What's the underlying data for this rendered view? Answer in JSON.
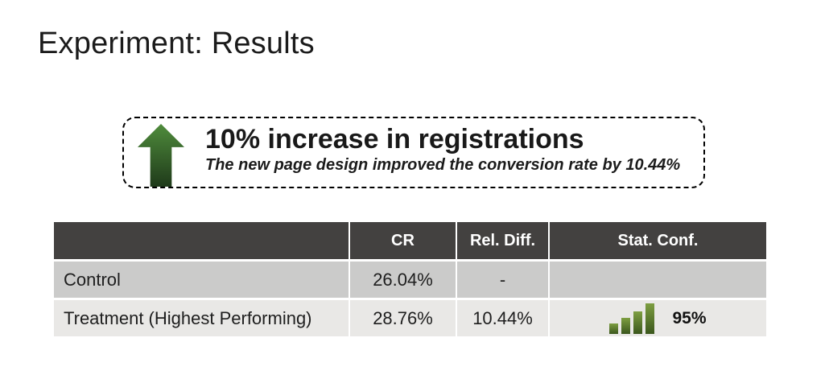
{
  "slide": {
    "title": "Experiment: Results"
  },
  "callout": {
    "arrow_icon": "green-up-arrow",
    "headline": "10% increase in registrations",
    "subtitle": "The new page design improved the conversion rate by 10.44%"
  },
  "table": {
    "headers": [
      "",
      "CR",
      "Rel. Diff.",
      "Stat. Conf."
    ],
    "rows": [
      {
        "label": "Control",
        "cr": "26.04%",
        "rel_diff": "-",
        "stat_conf": ""
      },
      {
        "label": "Treatment (Highest Performing)",
        "cr": "28.76%",
        "rel_diff": "10.44%",
        "stat_conf": "95%",
        "stat_conf_icon": "bar-chart-icon"
      }
    ]
  },
  "theme": {
    "header_bg": "#434140",
    "header_text": "#ffffff",
    "row_odd_bg": "#cbcbca",
    "row_even_bg": "#e9e8e6",
    "arrow_top": "#4f8c3c",
    "arrow_bottom": "#1f3a1a",
    "bar_top": "#7d9e41",
    "bar_bottom": "#3b571d"
  }
}
